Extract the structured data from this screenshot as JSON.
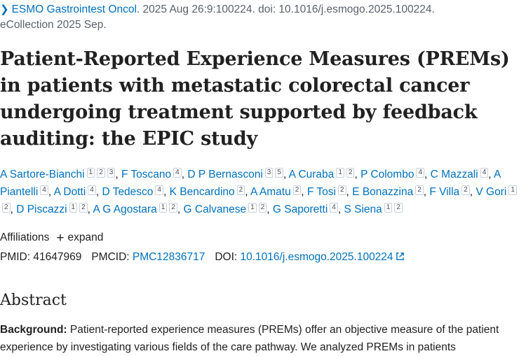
{
  "citation": {
    "journal": "ESMO Gastrointest Oncol.",
    "details": " 2025 Aug 26:9:100224. doi: 10.1016/j.esmogo.2025.100224.",
    "ecollection": "eCollection 2025 Sep."
  },
  "title": "Patient-Reported Experience Measures (PREMs) in patients with metastatic colorectal cancer undergoing treatment supported by feedback auditing: the EPIC study",
  "authors": [
    {
      "name": "A Sartore-Bianchi",
      "affs": [
        "1",
        "2",
        "3"
      ]
    },
    {
      "name": "F Toscano",
      "affs": [
        "4"
      ]
    },
    {
      "name": "D P Bernasconi",
      "affs": [
        "3",
        "5"
      ]
    },
    {
      "name": "A Curaba",
      "affs": [
        "1",
        "2"
      ]
    },
    {
      "name": "P Colombo",
      "affs": [
        "4"
      ]
    },
    {
      "name": "C Mazzali",
      "affs": [
        "4"
      ]
    },
    {
      "name": "A Piantelli",
      "affs": [
        "4"
      ]
    },
    {
      "name": "A Dotti",
      "affs": [
        "4"
      ]
    },
    {
      "name": "D Tedesco",
      "affs": [
        "4"
      ]
    },
    {
      "name": "K Bencardino",
      "affs": [
        "2"
      ]
    },
    {
      "name": "A Amatu",
      "affs": [
        "2"
      ]
    },
    {
      "name": "F Tosi",
      "affs": [
        "2"
      ]
    },
    {
      "name": "E Bonazzina",
      "affs": [
        "2"
      ]
    },
    {
      "name": "F Villa",
      "affs": [
        "2"
      ]
    },
    {
      "name": "V Gori",
      "affs": [
        "1",
        "2"
      ]
    },
    {
      "name": "D Piscazzi",
      "affs": [
        "1",
        "2"
      ]
    },
    {
      "name": "A G Agostara",
      "affs": [
        "1",
        "2"
      ]
    },
    {
      "name": "G Calvanese",
      "affs": [
        "1",
        "2"
      ]
    },
    {
      "name": "G Saporetti",
      "affs": [
        "4"
      ]
    },
    {
      "name": "S Siena",
      "affs": [
        "1",
        "2"
      ]
    }
  ],
  "affiliations": {
    "label": "Affiliations",
    "expand_label": "expand"
  },
  "identifiers": {
    "pmid_label": "PMID: ",
    "pmid": "41647969",
    "pmcid_label": "PMCID: ",
    "pmcid": "PMC12836717",
    "doi_label": "DOI: ",
    "doi": "10.1016/j.esmogo.2025.100224"
  },
  "abstract": {
    "heading": "Abstract",
    "background_label": "Background:",
    "background_text": " Patient-reported experience measures (PREMs) offer an objective measure of the patient experience by investigating various fields of the care pathway. We analyzed PREMs in patients"
  },
  "colors": {
    "link": "#0071bc",
    "text": "#212121",
    "muted": "#5b616b"
  }
}
